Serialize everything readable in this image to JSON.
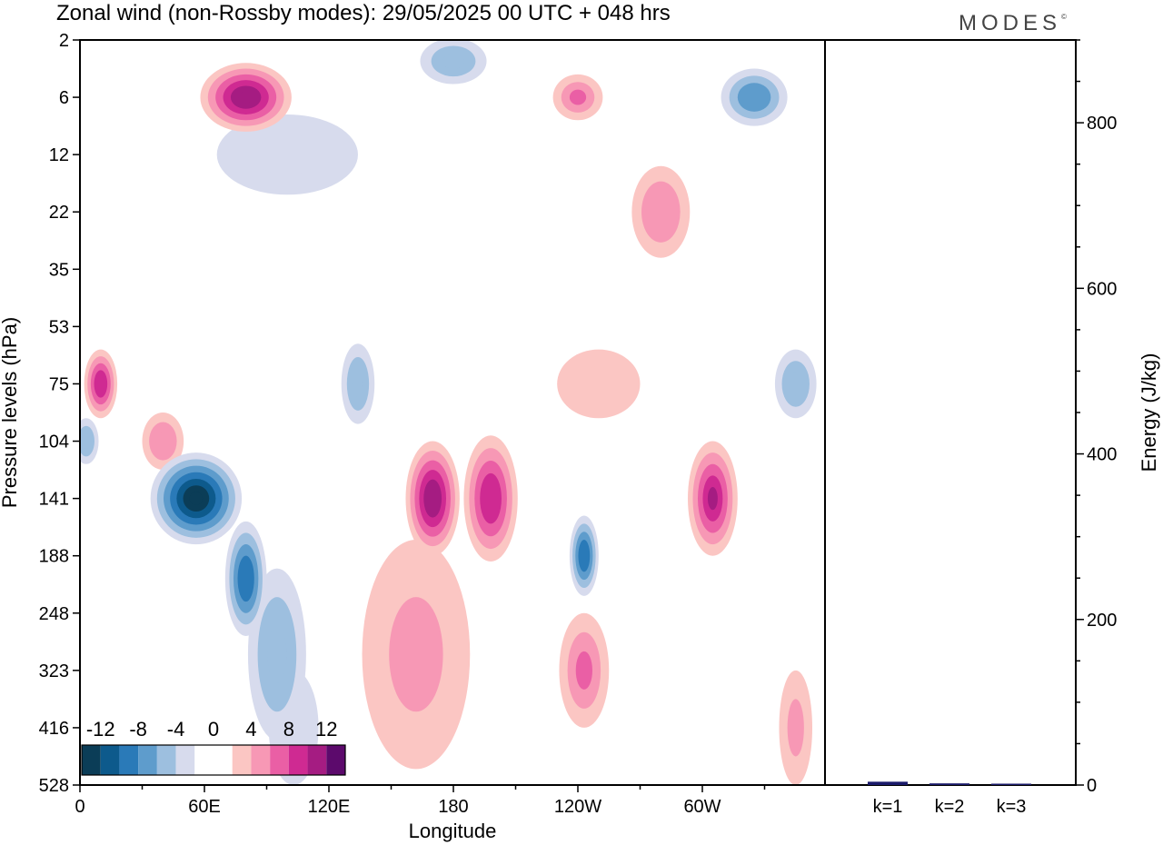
{
  "title": "Zonal wind (non-Rossby modes):  29/05/2025  00 UTC  + 048 hrs",
  "brand": "MODES",
  "brand_mark": "©",
  "colors": {
    "neg": [
      "#0b3d57",
      "#0d5a8c",
      "#2a7ab8",
      "#5e9ccc",
      "#9dbfdf",
      "#d7dbed"
    ],
    "zero": "#ffffff",
    "pos": [
      "#fbc6c3",
      "#f798b5",
      "#ea5fa5",
      "#cf2a92",
      "#a51c82",
      "#5c0a6c"
    ]
  },
  "chart_data": [
    {
      "type": "heatmap",
      "title": "Zonal wind (non-Rossby modes):  29/05/2025  00 UTC  + 048 hrs",
      "xlabel": "Longitude",
      "ylabel": "Pressure levels (hPa)",
      "x_ticks": [
        "0",
        "60E",
        "120E",
        "180",
        "120W",
        "60W"
      ],
      "y_ticks": [
        "2",
        "6",
        "12",
        "22",
        "35",
        "53",
        "75",
        "104",
        "141",
        "188",
        "248",
        "323",
        "416",
        "528"
      ],
      "colorbar": {
        "labels": [
          "-12",
          "-8",
          "-4",
          "0",
          "4",
          "8",
          "12"
        ],
        "levels": [
          -14,
          -12,
          -10,
          -8,
          -6,
          -4,
          -2,
          0,
          2,
          4,
          6,
          8,
          10,
          12,
          14
        ]
      },
      "features": [
        {
          "lon": 56,
          "level": 141,
          "value": -14,
          "lon_width": 22,
          "level_span": 1.6
        },
        {
          "lon": 80,
          "level": 210,
          "value": -9,
          "lon_width": 10,
          "level_span": 2.0
        },
        {
          "lon": 95,
          "level": 300,
          "value": -5,
          "lon_width": 14,
          "level_span": 3.0
        },
        {
          "lon": 103,
          "level": 416,
          "value": -4,
          "lon_width": 12,
          "level_span": 2.0
        },
        {
          "lon": 243,
          "level": 188,
          "value": -10,
          "lon_width": 7,
          "level_span": 1.4
        },
        {
          "lon": 134,
          "level": 75,
          "value": -6,
          "lon_width": 8,
          "level_span": 1.4
        },
        {
          "lon": 3,
          "level": 104,
          "value": -6,
          "lon_width": 6,
          "level_span": 0.8
        },
        {
          "lon": 345,
          "level": 75,
          "value": -6,
          "lon_width": 10,
          "level_span": 1.2
        },
        {
          "lon": 10,
          "level": 75,
          "value": 9,
          "lon_width": 8,
          "level_span": 1.2
        },
        {
          "lon": 40,
          "level": 104,
          "value": 5,
          "lon_width": 10,
          "level_span": 1.0
        },
        {
          "lon": 170,
          "level": 141,
          "value": 11,
          "lon_width": 13,
          "level_span": 2.0
        },
        {
          "lon": 198,
          "level": 141,
          "value": 9,
          "lon_width": 13,
          "level_span": 2.2
        },
        {
          "lon": 162,
          "level": 300,
          "value": 4,
          "lon_width": 26,
          "level_span": 4.0
        },
        {
          "lon": 305,
          "level": 141,
          "value": 10,
          "lon_width": 12,
          "level_span": 2.0
        },
        {
          "lon": 243,
          "level": 323,
          "value": 6,
          "lon_width": 12,
          "level_span": 2.0
        },
        {
          "lon": 345,
          "level": 416,
          "value": 4,
          "lon_width": 8,
          "level_span": 2.0
        },
        {
          "lon": 80,
          "level": 6,
          "value": 11,
          "lon_width": 22,
          "level_span": 1.2
        },
        {
          "lon": 100,
          "level": 12,
          "value": -4,
          "lon_width": 34,
          "level_span": 1.4
        },
        {
          "lon": 240,
          "level": 6,
          "value": 6,
          "lon_width": 12,
          "level_span": 0.8
        },
        {
          "lon": 325,
          "level": 6,
          "value": -7,
          "lon_width": 16,
          "level_span": 1.0
        },
        {
          "lon": 280,
          "level": 22,
          "value": 5,
          "lon_width": 14,
          "level_span": 1.6
        },
        {
          "lon": 180,
          "level": 3,
          "value": -5,
          "lon_width": 16,
          "level_span": 0.8
        },
        {
          "lon": 250,
          "level": 75,
          "value": 3,
          "lon_width": 20,
          "level_span": 1.2
        }
      ]
    },
    {
      "type": "bar",
      "categories": [
        "k=1",
        "k=2",
        "k=3"
      ],
      "values": [
        4,
        2,
        1
      ],
      "ylabel": "Energy (J/kg)",
      "y_ticks": [
        "0",
        "200",
        "400",
        "600",
        "800"
      ],
      "ylim": [
        0,
        900
      ],
      "bar_color": "#1a1a6a"
    }
  ]
}
